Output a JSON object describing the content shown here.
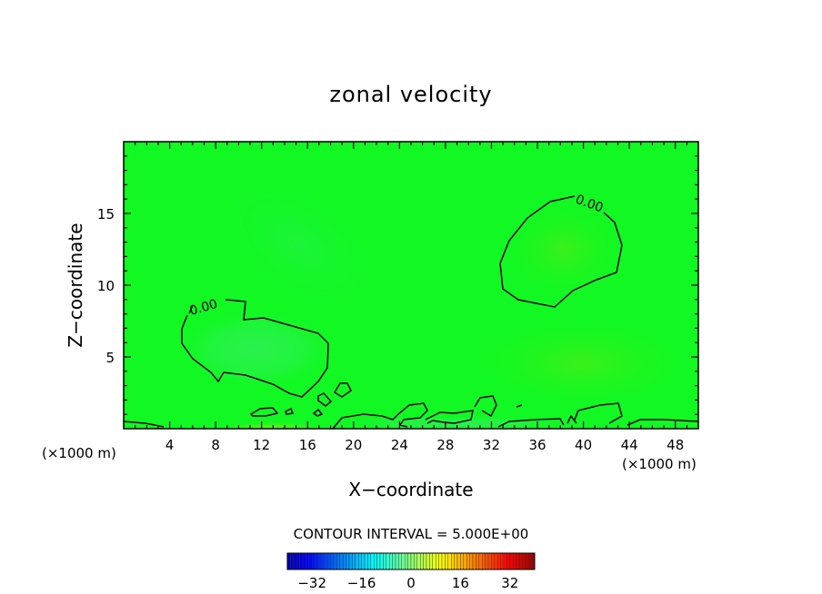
{
  "chart_data": {
    "type": "heatmap",
    "title": "zonal velocity",
    "xlabel": "X−coordinate",
    "ylabel": "Z−coordinate",
    "x_unit": "(×1000 m)",
    "xlim": [
      0,
      50
    ],
    "ylim": [
      0,
      20
    ],
    "x_ticks": [
      "4",
      "8",
      "12",
      "16",
      "20",
      "24",
      "28",
      "32",
      "36",
      "40",
      "44",
      "48"
    ],
    "x_tick_values": [
      4,
      8,
      12,
      16,
      20,
      24,
      28,
      32,
      36,
      40,
      44,
      48
    ],
    "y_ticks": [
      "5",
      "10",
      "15"
    ],
    "y_tick_values": [
      5,
      10,
      15
    ],
    "contour_level_label": "0.00",
    "contour_interval_text": "CONTOUR INTERVAL = 5.000E+00",
    "colorbar_ticks": [
      "−32",
      "−16",
      "0",
      "16",
      "32"
    ],
    "colorbar_tick_values": [
      -32,
      -16,
      0,
      16,
      32
    ],
    "colorbar_range": [
      -40,
      40
    ],
    "contour_interval": 5.0,
    "dominant_color": "#00ff1e",
    "fill_colors": {
      "near_zero": "#11f822",
      "slightly_negative": "#22f040",
      "slightly_positive": "#40f018"
    },
    "contour_color": "#000000",
    "grid": false
  }
}
